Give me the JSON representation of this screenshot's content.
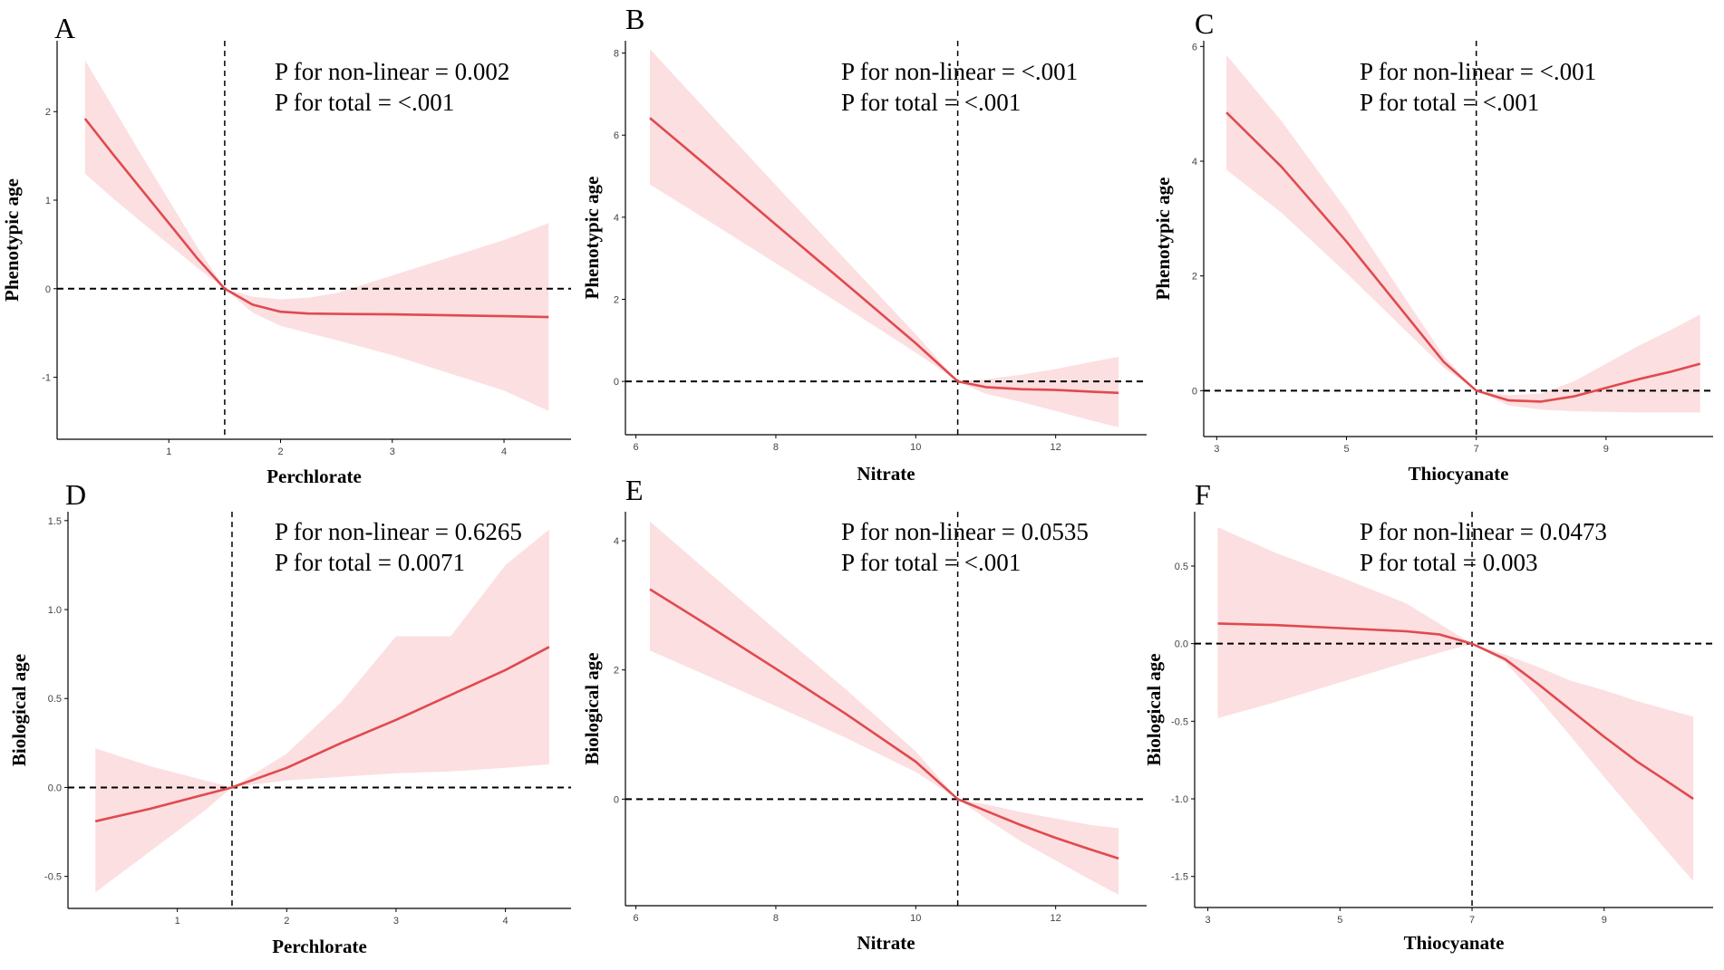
{
  "chart_data": [
    {
      "panel": "A",
      "type": "line",
      "xlabel": "Perchlorate",
      "ylabel": "Phenotypic age",
      "xlim": [
        0.0,
        4.6
      ],
      "ylim": [
        -1.7,
        2.8
      ],
      "xticks": [
        1,
        2,
        3,
        4
      ],
      "xtick_labels": [
        "1",
        "2",
        "3",
        "4"
      ],
      "yticks": [
        -1,
        0,
        1,
        2
      ],
      "ytick_labels": [
        "-1",
        "0",
        "1",
        "2"
      ],
      "ref_x": 1.5,
      "ref_y": 0,
      "annotations": [
        "P for non-linear = 0.002",
        "P for total = <.001"
      ],
      "series": [
        {
          "name": "estimate",
          "x": [
            0.25,
            0.5,
            0.75,
            1.0,
            1.25,
            1.5,
            1.75,
            2.0,
            2.25,
            2.5,
            3.0,
            3.5,
            4.0,
            4.4
          ],
          "y": [
            1.92,
            1.52,
            1.13,
            0.74,
            0.35,
            0.0,
            -0.18,
            -0.26,
            -0.28,
            -0.285,
            -0.29,
            -0.3,
            -0.31,
            -0.32
          ],
          "lower": [
            1.3,
            1.02,
            0.76,
            0.5,
            0.24,
            0.0,
            -0.27,
            -0.42,
            -0.5,
            -0.58,
            -0.75,
            -0.95,
            -1.15,
            -1.38
          ],
          "upper": [
            2.58,
            2.05,
            1.52,
            1.0,
            0.48,
            0.0,
            -0.09,
            -0.12,
            -0.1,
            -0.05,
            0.15,
            0.35,
            0.55,
            0.74
          ]
        }
      ]
    },
    {
      "panel": "B",
      "type": "line",
      "xlabel": "Nitrate",
      "ylabel": "Phenotypic age",
      "xlim": [
        5.85,
        13.3
      ],
      "ylim": [
        -1.3,
        8.3
      ],
      "xticks": [
        6,
        8,
        10,
        12
      ],
      "xtick_labels": [
        "6",
        "8",
        "10",
        "12"
      ],
      "yticks": [
        0,
        2,
        4,
        6,
        8
      ],
      "ytick_labels": [
        "0",
        "2",
        "4",
        "6",
        "8"
      ],
      "ref_x": 10.6,
      "ref_y": 0,
      "annotations": [
        "P for non-linear = <.001",
        "P for total = <.001"
      ],
      "series": [
        {
          "name": "estimate",
          "x": [
            6.2,
            7.0,
            8.0,
            9.0,
            10.0,
            10.6,
            11.0,
            11.5,
            12.0,
            12.5,
            12.9
          ],
          "y": [
            6.42,
            5.27,
            3.82,
            2.38,
            0.93,
            0.0,
            -0.14,
            -0.19,
            -0.21,
            -0.25,
            -0.28
          ],
          "lower": [
            4.8,
            3.95,
            2.88,
            1.8,
            0.7,
            0.0,
            -0.3,
            -0.5,
            -0.72,
            -0.95,
            -1.12
          ],
          "upper": [
            8.1,
            6.62,
            4.78,
            2.96,
            1.15,
            0.0,
            0.05,
            0.16,
            0.3,
            0.47,
            0.6
          ]
        }
      ]
    },
    {
      "panel": "C",
      "type": "line",
      "xlabel": "Thiocyanate",
      "ylabel": "Phenotypic age",
      "xlim": [
        2.8,
        10.65
      ],
      "ylim": [
        -0.8,
        6.1
      ],
      "xticks": [
        3,
        5,
        7,
        9
      ],
      "xtick_labels": [
        "3",
        "5",
        "7",
        "9"
      ],
      "yticks": [
        0,
        2,
        4,
        6
      ],
      "ytick_labels": [
        "0",
        "2",
        "4",
        "6"
      ],
      "ref_x": 7.0,
      "ref_y": 0,
      "annotations": [
        "P for non-linear = <.001",
        "P for total = <.001"
      ],
      "series": [
        {
          "name": "estimate",
          "x": [
            3.15,
            4.0,
            5.0,
            6.0,
            6.5,
            7.0,
            7.5,
            8.0,
            8.5,
            9.0,
            9.5,
            10.0,
            10.45
          ],
          "y": [
            4.85,
            3.9,
            2.6,
            1.2,
            0.5,
            0.0,
            -0.17,
            -0.19,
            -0.1,
            0.05,
            0.2,
            0.33,
            0.47
          ],
          "lower": [
            3.85,
            3.1,
            2.05,
            0.95,
            0.4,
            0.0,
            -0.26,
            -0.33,
            -0.36,
            -0.37,
            -0.38,
            -0.38,
            -0.38
          ],
          "upper": [
            5.85,
            4.7,
            3.15,
            1.45,
            0.6,
            0.0,
            -0.08,
            -0.05,
            0.16,
            0.47,
            0.78,
            1.06,
            1.33
          ]
        }
      ]
    },
    {
      "panel": "D",
      "type": "line",
      "xlabel": "Perchlorate",
      "ylabel": "Biological age",
      "xlim": [
        0.0,
        4.6
      ],
      "ylim": [
        -0.68,
        1.55
      ],
      "xticks": [
        1,
        2,
        3,
        4
      ],
      "xtick_labels": [
        "1",
        "2",
        "3",
        "4"
      ],
      "yticks": [
        -0.5,
        0.0,
        0.5,
        1.0,
        1.5
      ],
      "ytick_labels": [
        "-0.5",
        "0.0",
        "0.5",
        "1.0",
        "1.5"
      ],
      "ref_x": 1.5,
      "ref_y": 0,
      "annotations": [
        "P for non-linear = 0.6265",
        "P for total = 0.0071"
      ],
      "series": [
        {
          "name": "estimate",
          "x": [
            0.25,
            0.75,
            1.25,
            1.5,
            2.0,
            2.5,
            3.0,
            3.5,
            4.0,
            4.4
          ],
          "y": [
            -0.19,
            -0.12,
            -0.04,
            0.0,
            0.11,
            0.25,
            0.38,
            0.52,
            0.66,
            0.79
          ],
          "lower": [
            -0.59,
            -0.36,
            -0.13,
            0.0,
            0.04,
            0.06,
            0.08,
            0.09,
            0.11,
            0.13
          ],
          "upper": [
            0.22,
            0.12,
            0.04,
            0.0,
            0.19,
            0.48,
            0.85,
            0.85,
            1.25,
            1.45
          ]
        }
      ]
    },
    {
      "panel": "E",
      "type": "line",
      "xlabel": "Nitrate",
      "ylabel": "Biological age",
      "xlim": [
        5.85,
        13.3
      ],
      "ylim": [
        -1.65,
        4.45
      ],
      "xticks": [
        6,
        8,
        10,
        12
      ],
      "xtick_labels": [
        "6",
        "8",
        "10",
        "12"
      ],
      "yticks": [
        0,
        2,
        4
      ],
      "ytick_labels": [
        "0",
        "2",
        "4"
      ],
      "ref_x": 10.6,
      "ref_y": 0,
      "annotations": [
        "P for non-linear = 0.0535",
        "P for total = <.001"
      ],
      "series": [
        {
          "name": "estimate",
          "x": [
            6.2,
            7.0,
            8.0,
            9.0,
            10.0,
            10.6,
            11.0,
            11.5,
            12.0,
            12.5,
            12.9
          ],
          "y": [
            3.25,
            2.71,
            2.02,
            1.32,
            0.58,
            0.0,
            -0.18,
            -0.4,
            -0.6,
            -0.78,
            -0.92
          ],
          "lower": [
            2.3,
            1.92,
            1.44,
            0.95,
            0.42,
            0.0,
            -0.3,
            -0.65,
            -0.95,
            -1.25,
            -1.48
          ],
          "upper": [
            4.3,
            3.55,
            2.62,
            1.7,
            0.74,
            0.0,
            -0.08,
            -0.2,
            -0.3,
            -0.4,
            -0.45
          ]
        }
      ]
    },
    {
      "panel": "F",
      "type": "line",
      "xlabel": "Thiocyanate",
      "ylabel": "Biological age",
      "xlim": [
        2.8,
        10.65
      ],
      "ylim": [
        -1.7,
        0.85
      ],
      "xticks": [
        3,
        5,
        7,
        9
      ],
      "xtick_labels": [
        "3",
        "5",
        "7",
        "9"
      ],
      "yticks": [
        -1.5,
        -1.0,
        -0.5,
        0.0,
        0.5
      ],
      "ytick_labels": [
        "-1.5",
        "-1.0",
        "-0.5",
        "0.0",
        "0.5"
      ],
      "ref_x": 7.0,
      "ref_y": 0,
      "annotations": [
        "P for non-linear = 0.0473",
        "P for total = 0.003"
      ],
      "series": [
        {
          "name": "estimate",
          "x": [
            3.15,
            4.0,
            5.0,
            6.0,
            6.5,
            7.0,
            7.5,
            8.0,
            8.5,
            9.0,
            9.5,
            10.0,
            10.35
          ],
          "y": [
            0.13,
            0.12,
            0.1,
            0.08,
            0.06,
            0.0,
            -0.1,
            -0.26,
            -0.43,
            -0.6,
            -0.76,
            -0.9,
            -1.0
          ],
          "lower": [
            -0.48,
            -0.38,
            -0.25,
            -0.12,
            -0.06,
            0.0,
            -0.12,
            -0.35,
            -0.6,
            -0.86,
            -1.11,
            -1.36,
            -1.53
          ],
          "upper": [
            0.75,
            0.59,
            0.43,
            0.26,
            0.13,
            0.0,
            -0.07,
            -0.15,
            -0.24,
            -0.3,
            -0.37,
            -0.43,
            -0.47
          ]
        }
      ]
    }
  ]
}
